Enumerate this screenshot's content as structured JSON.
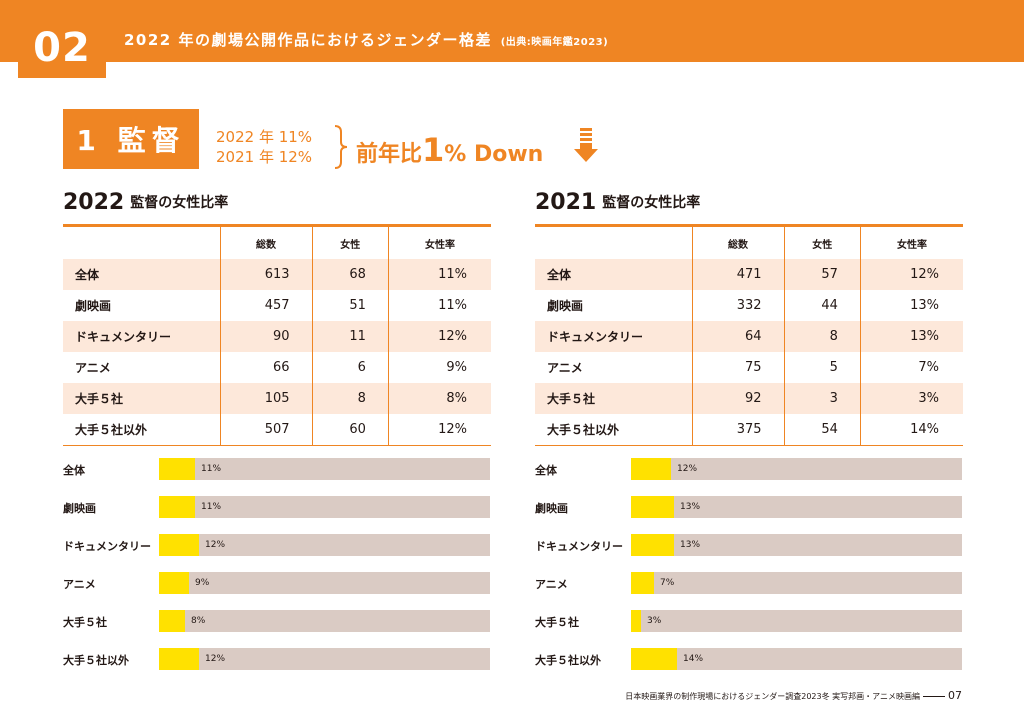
{
  "header": {
    "section_number": "02",
    "title": "2022 年の劇場公開作品におけるジェンダー格差",
    "source": "(出典:映画年鑑2023)"
  },
  "category": {
    "label": "1 監督",
    "year_2022": "2022 年 11%",
    "year_2021": "2021 年 12%",
    "delta_prefix": "前年比",
    "delta_number": "1",
    "delta_suffix": "% Down",
    "arrow_icon": "down-arrow-icon"
  },
  "columns": [
    "総数",
    "女性",
    "女性率"
  ],
  "panels": [
    {
      "year": "2022",
      "subtitle": "監督の女性比率",
      "rows": [
        {
          "name": "全体",
          "total": "613",
          "female": "68",
          "rate": "11%"
        },
        {
          "name": "劇映画",
          "total": "457",
          "female": "51",
          "rate": "11%"
        },
        {
          "name": "ドキュメンタリー",
          "total": "90",
          "female": "11",
          "rate": "12%"
        },
        {
          "name": "アニメ",
          "total": "66",
          "female": "6",
          "rate": "9%"
        },
        {
          "name": "大手５社",
          "total": "105",
          "female": "8",
          "rate": "8%"
        },
        {
          "name": "大手５社以外",
          "total": "507",
          "female": "60",
          "rate": "12%"
        }
      ]
    },
    {
      "year": "2021",
      "subtitle": "監督の女性比率",
      "rows": [
        {
          "name": "全体",
          "total": "471",
          "female": "57",
          "rate": "12%"
        },
        {
          "name": "劇映画",
          "total": "332",
          "female": "44",
          "rate": "13%"
        },
        {
          "name": "ドキュメンタリー",
          "total": "64",
          "female": "8",
          "rate": "13%"
        },
        {
          "name": "アニメ",
          "total": "75",
          "female": "5",
          "rate": "7%"
        },
        {
          "name": "大手５社",
          "total": "92",
          "female": "3",
          "rate": "3%"
        },
        {
          "name": "大手５社以外",
          "total": "375",
          "female": "54",
          "rate": "14%"
        }
      ]
    }
  ],
  "chart_data": [
    {
      "type": "bar",
      "orientation": "horizontal",
      "categories": [
        "全体",
        "劇映画",
        "ドキュメンタリー",
        "アニメ",
        "大手５社",
        "大手５社以外"
      ],
      "values": [
        11,
        11,
        12,
        9,
        8,
        12
      ],
      "value_labels": [
        "11%",
        "11%",
        "12%",
        "9%",
        "8%",
        "12%"
      ],
      "xlim": [
        0,
        100
      ],
      "colors": {
        "fill": "#FFE100",
        "track": "#DACBC4"
      }
    },
    {
      "type": "bar",
      "orientation": "horizontal",
      "categories": [
        "全体",
        "劇映画",
        "ドキュメンタリー",
        "アニメ",
        "大手５社",
        "大手５社以外"
      ],
      "values": [
        12,
        13,
        13,
        7,
        3,
        14
      ],
      "value_labels": [
        "12%",
        "13%",
        "13%",
        "7%",
        "3%",
        "14%"
      ],
      "xlim": [
        0,
        100
      ],
      "colors": {
        "fill": "#FFE100",
        "track": "#DACBC4"
      }
    }
  ],
  "footer": {
    "text": "日本映画業界の制作現場におけるジェンダー調査2023冬  実写邦画・アニメ映画編",
    "page": "07"
  },
  "colors": {
    "accent": "#EF8523",
    "row_alt": "#FDE8DA",
    "bar_fill": "#FFE100",
    "bar_track": "#DACBC4"
  }
}
